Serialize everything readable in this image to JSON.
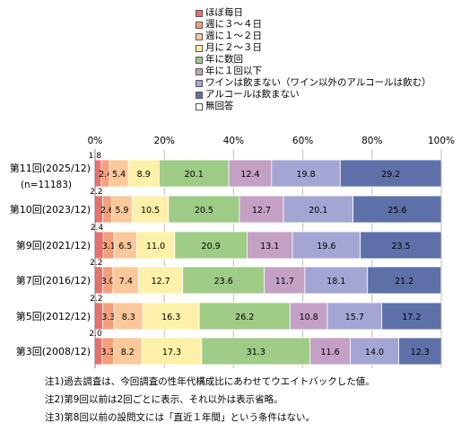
{
  "legend": [
    {
      "label": "ほぼ毎日",
      "color": "#e8706a"
    },
    {
      "label": "週に３～４日",
      "color": "#f4a07c"
    },
    {
      "label": "週に１～２日",
      "color": "#fac89a"
    },
    {
      "label": "月に２～３日",
      "color": "#fdf0a8"
    },
    {
      "label": "年に数回",
      "color": "#9ecb86"
    },
    {
      "label": "年に１回以下",
      "color": "#c4a0c4"
    },
    {
      "label": "ワインは飲まない（ワイン以外のアルコールは飲む）",
      "color": "#a3a6d3"
    },
    {
      "label": "アルコールは飲まない",
      "color": "#5d71a8"
    },
    {
      "label": "無回答",
      "color": "#ffffff"
    }
  ],
  "notes": [
    "注1)過去調査は、今回調査の性年代構成比にあわせてウエイトバックした値。",
    "注2)第9回以前は2回ごとに表示、それ以外は表示省略。",
    "注3)第8回以前の設問文には「直近１年間」という条件はない。"
  ],
  "chart_data": {
    "type": "bar",
    "orientation": "horizontal",
    "stacked": "percent",
    "xlim": [
      0,
      100
    ],
    "x_ticks": [
      "0%",
      "20%",
      "40%",
      "60%",
      "80%",
      "100%"
    ],
    "categories": [
      {
        "label": "第11回(2025/12)",
        "sublabel": "(n=11183)"
      },
      {
        "label": "第10回(2023/12)",
        "sublabel": ""
      },
      {
        "label": "第9回(2021/12)",
        "sublabel": ""
      },
      {
        "label": "第7回(2016/12)",
        "sublabel": ""
      },
      {
        "label": "第5回(2012/12)",
        "sublabel": ""
      },
      {
        "label": "第3回(2008/12)",
        "sublabel": ""
      }
    ],
    "series": [
      {
        "name": "ほぼ毎日",
        "values": [
          1.8,
          2.2,
          2.4,
          2.2,
          2.2,
          2.0
        ]
      },
      {
        "name": "週に３～４日",
        "values": [
          2.4,
          2.6,
          3.1,
          3.0,
          3.3,
          3.3
        ]
      },
      {
        "name": "週に１～２日",
        "values": [
          5.4,
          5.9,
          6.5,
          7.4,
          8.3,
          8.2
        ]
      },
      {
        "name": "月に２～３日",
        "values": [
          8.9,
          10.5,
          11.0,
          12.7,
          16.3,
          17.3
        ]
      },
      {
        "name": "年に数回",
        "values": [
          20.1,
          20.5,
          20.9,
          23.6,
          26.2,
          31.3
        ]
      },
      {
        "name": "年に１回以下",
        "values": [
          12.4,
          12.7,
          13.1,
          11.7,
          10.8,
          11.6
        ]
      },
      {
        "name": "ワインは飲まない（ワイン以外のアルコールは飲む）",
        "values": [
          19.8,
          20.1,
          19.6,
          18.1,
          15.7,
          14.0
        ]
      },
      {
        "name": "アルコールは飲まない",
        "values": [
          29.2,
          25.6,
          23.5,
          21.2,
          17.2,
          12.3
        ]
      },
      {
        "name": "無回答",
        "values": [
          0,
          0,
          0,
          0,
          0,
          0
        ]
      }
    ],
    "first_value_label": "above"
  }
}
